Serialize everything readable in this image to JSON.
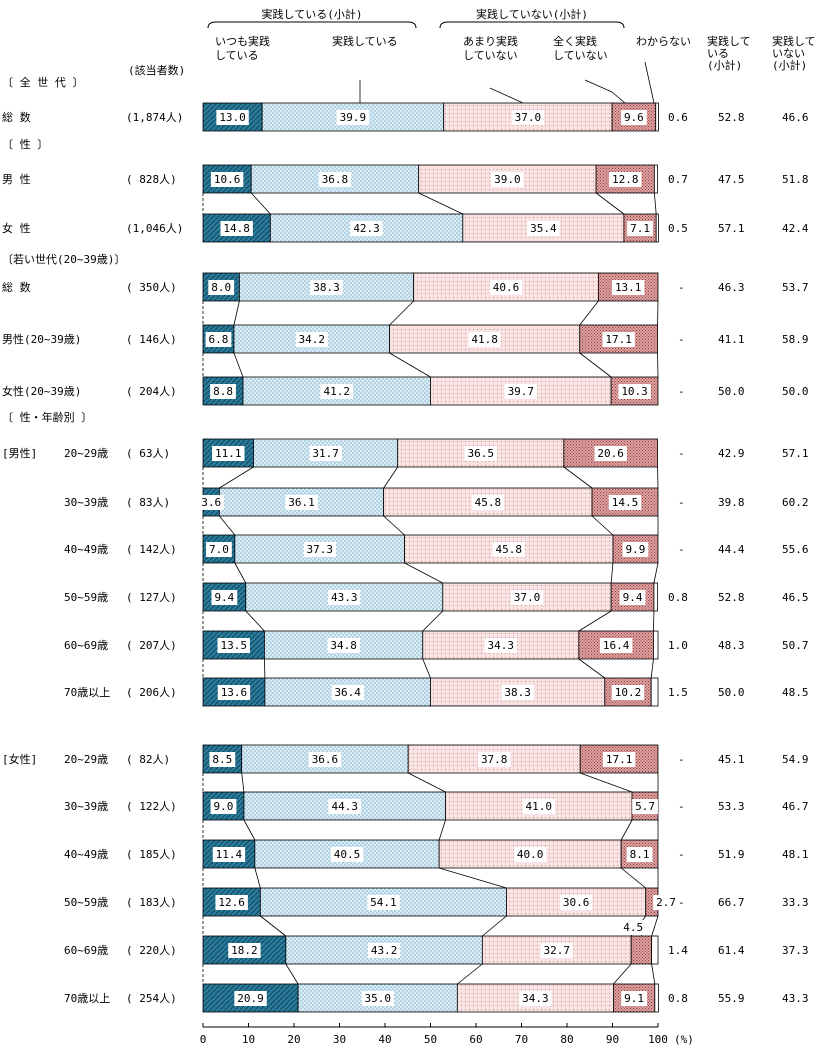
{
  "chart_data": {
    "type": "bar",
    "orientation": "horizontal",
    "stacked": true,
    "unit": "(%)",
    "xlim": [
      0,
      100
    ],
    "x_ticks": [
      0,
      10,
      20,
      30,
      40,
      50,
      60,
      70,
      80,
      90,
      100
    ],
    "count_header": "(該当者数)",
    "group_labels": {
      "done": "実践している(小計)",
      "not_done": "実践していない(小計)"
    },
    "categories": [
      {
        "name": "always",
        "label_lines": [
          "いつも実践",
          "している"
        ],
        "color": "#2a7a99"
      },
      {
        "name": "doing",
        "label_lines": [
          "実践している"
        ],
        "color": "#d8ecf6"
      },
      {
        "name": "rarely",
        "label_lines": [
          "あまり実践",
          "していない"
        ],
        "color": "#f9e2e2"
      },
      {
        "name": "never",
        "label_lines": [
          "全く実践",
          "していない"
        ],
        "color": "#e0a2a2"
      },
      {
        "name": "unknown",
        "label_lines": [
          "わからない"
        ],
        "color": "#ffffff"
      }
    ],
    "subtotal_headers": [
      [
        "実践して",
        "いる",
        "(小計)"
      ],
      [
        "実践して",
        "いない",
        "(小計)"
      ]
    ],
    "sections": [
      {
        "label": "〔 全 世 代 〕"
      },
      {
        "label": "〔   性   〕"
      },
      {
        "label": "〔若い世代(20~39歳)〕"
      },
      {
        "label": "〔 性・年齢別 〕"
      }
    ],
    "rows": [
      {
        "group_label": "",
        "label": "総      数",
        "count": "(1,874人)",
        "values": [
          13.0,
          39.9,
          37.0,
          9.6,
          0.6
        ],
        "subtotal_done": "52.8",
        "subtotal_not_done": "46.6",
        "unknown_label": "0.6"
      },
      {
        "group_label": "",
        "label": "男      性",
        "count": "( 828人)",
        "values": [
          10.6,
          36.8,
          39.0,
          12.8,
          0.7
        ],
        "subtotal_done": "47.5",
        "subtotal_not_done": "51.8",
        "unknown_label": "0.7"
      },
      {
        "group_label": "",
        "label": "女      性",
        "count": "(1,046人)",
        "values": [
          14.8,
          42.3,
          35.4,
          7.1,
          0.5
        ],
        "subtotal_done": "57.1",
        "subtotal_not_done": "42.4",
        "unknown_label": "0.5"
      },
      {
        "group_label": "",
        "label": "総      数",
        "count": "( 350人)",
        "values": [
          8.0,
          38.3,
          40.6,
          13.1,
          0
        ],
        "subtotal_done": "46.3",
        "subtotal_not_done": "53.7",
        "unknown_label": "-"
      },
      {
        "group_label": "",
        "label": "男性(20~39歳)",
        "count": "( 146人)",
        "values": [
          6.8,
          34.2,
          41.8,
          17.1,
          0
        ],
        "subtotal_done": "41.1",
        "subtotal_not_done": "58.9",
        "unknown_label": "-"
      },
      {
        "group_label": "",
        "label": "女性(20~39歳)",
        "count": "( 204人)",
        "values": [
          8.8,
          41.2,
          39.7,
          10.3,
          0
        ],
        "subtotal_done": "50.0",
        "subtotal_not_done": "50.0",
        "unknown_label": "-"
      },
      {
        "group_label": "[男性]",
        "label": "20~29歳",
        "count": "(  63人)",
        "values": [
          11.1,
          31.7,
          36.5,
          20.6,
          0
        ],
        "subtotal_done": "42.9",
        "subtotal_not_done": "57.1",
        "unknown_label": "-"
      },
      {
        "group_label": "",
        "label": "30~39歳",
        "count": "(  83人)",
        "values": [
          3.6,
          36.1,
          45.8,
          14.5,
          0
        ],
        "subtotal_done": "39.8",
        "subtotal_not_done": "60.2",
        "unknown_label": "-"
      },
      {
        "group_label": "",
        "label": "40~49歳",
        "count": "( 142人)",
        "values": [
          7.0,
          37.3,
          45.8,
          9.9,
          0
        ],
        "subtotal_done": "44.4",
        "subtotal_not_done": "55.6",
        "unknown_label": "-"
      },
      {
        "group_label": "",
        "label": "50~59歳",
        "count": "( 127人)",
        "values": [
          9.4,
          43.3,
          37.0,
          9.4,
          0.8
        ],
        "subtotal_done": "52.8",
        "subtotal_not_done": "46.5",
        "unknown_label": "0.8"
      },
      {
        "group_label": "",
        "label": "60~69歳",
        "count": "( 207人)",
        "values": [
          13.5,
          34.8,
          34.3,
          16.4,
          1.0
        ],
        "subtotal_done": "48.3",
        "subtotal_not_done": "50.7",
        "unknown_label": "1.0"
      },
      {
        "group_label": "",
        "label": "70歳以上",
        "count": "( 206人)",
        "values": [
          13.6,
          36.4,
          38.3,
          10.2,
          1.5
        ],
        "subtotal_done": "50.0",
        "subtotal_not_done": "48.5",
        "unknown_label": "1.5"
      },
      {
        "group_label": "[女性]",
        "label": "20~29歳",
        "count": "(  82人)",
        "values": [
          8.5,
          36.6,
          37.8,
          17.1,
          0
        ],
        "subtotal_done": "45.1",
        "subtotal_not_done": "54.9",
        "unknown_label": "-"
      },
      {
        "group_label": "",
        "label": "30~39歳",
        "count": "( 122人)",
        "values": [
          9.0,
          44.3,
          41.0,
          5.7,
          0
        ],
        "subtotal_done": "53.3",
        "subtotal_not_done": "46.7",
        "unknown_label": "-"
      },
      {
        "group_label": "",
        "label": "40~49歳",
        "count": "( 185人)",
        "values": [
          11.4,
          40.5,
          40.0,
          8.1,
          0
        ],
        "subtotal_done": "51.9",
        "subtotal_not_done": "48.1",
        "unknown_label": "-"
      },
      {
        "group_label": "",
        "label": "50~59歳",
        "count": "( 183人)",
        "values": [
          12.6,
          54.1,
          30.6,
          2.7,
          0
        ],
        "subtotal_done": "66.7",
        "subtotal_not_done": "33.3",
        "unknown_label": "-"
      },
      {
        "group_label": "",
        "label": "60~69歳",
        "count": "( 220人)",
        "values": [
          18.2,
          43.2,
          32.7,
          4.5,
          1.4
        ],
        "subtotal_done": "61.4",
        "subtotal_not_done": "37.3",
        "unknown_label": "1.4"
      },
      {
        "group_label": "",
        "label": "70歳以上",
        "count": "( 254人)",
        "values": [
          20.9,
          35.0,
          34.3,
          9.1,
          0.8
        ],
        "subtotal_done": "55.9",
        "subtotal_not_done": "43.3",
        "unknown_label": "0.8"
      }
    ]
  }
}
